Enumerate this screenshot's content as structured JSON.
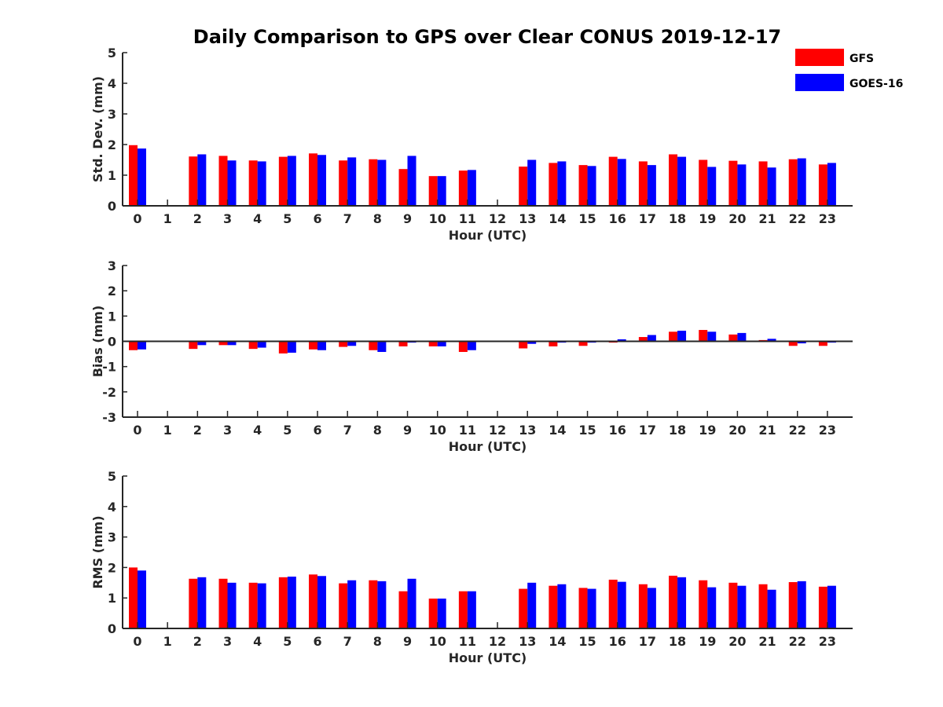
{
  "title": "Daily Comparison to GPS over Clear CONUS 2019-12-17",
  "legend": [
    {
      "name": "GFS",
      "color": "#ff0000"
    },
    {
      "name": "GOES-16",
      "color": "#0000ff"
    }
  ],
  "chart_data": [
    {
      "type": "bar",
      "ylabel": "Std. Dev. (mm)",
      "xlabel": "Hour (UTC)",
      "ylim": [
        0,
        5
      ],
      "yticks": [
        0,
        1,
        2,
        3,
        4,
        5
      ],
      "categories": [
        "0",
        "1",
        "2",
        "3",
        "4",
        "5",
        "6",
        "7",
        "8",
        "9",
        "10",
        "11",
        "12",
        "13",
        "14",
        "15",
        "16",
        "17",
        "18",
        "19",
        "20",
        "21",
        "22",
        "23"
      ],
      "series": [
        {
          "name": "GFS",
          "color": "#ff0000",
          "values": [
            1.98,
            null,
            1.61,
            1.63,
            1.48,
            1.6,
            1.71,
            1.48,
            1.52,
            1.2,
            0.97,
            1.15,
            null,
            1.28,
            1.4,
            1.33,
            1.6,
            1.45,
            1.68,
            1.5,
            1.47,
            1.45,
            1.52,
            1.35
          ]
        },
        {
          "name": "GOES-16",
          "color": "#0000ff",
          "values": [
            1.87,
            null,
            1.68,
            1.48,
            1.45,
            1.63,
            1.66,
            1.58,
            1.5,
            1.63,
            0.97,
            1.17,
            null,
            1.5,
            1.45,
            1.3,
            1.53,
            1.33,
            1.6,
            1.27,
            1.35,
            1.25,
            1.55,
            1.4
          ]
        }
      ]
    },
    {
      "type": "bar",
      "ylabel": "Bias (mm)",
      "xlabel": "Hour (UTC)",
      "ylim": [
        -3,
        3
      ],
      "yticks": [
        -3,
        -2,
        -1,
        0,
        1,
        2,
        3
      ],
      "categories": [
        "0",
        "1",
        "2",
        "3",
        "4",
        "5",
        "6",
        "7",
        "8",
        "9",
        "10",
        "11",
        "12",
        "13",
        "14",
        "15",
        "16",
        "17",
        "18",
        "19",
        "20",
        "21",
        "22",
        "23"
      ],
      "series": [
        {
          "name": "GFS",
          "color": "#ff0000",
          "values": [
            -0.35,
            null,
            -0.3,
            -0.15,
            -0.3,
            -0.48,
            -0.32,
            -0.22,
            -0.35,
            -0.2,
            -0.2,
            -0.42,
            null,
            -0.28,
            -0.2,
            -0.18,
            -0.05,
            0.17,
            0.38,
            0.45,
            0.27,
            0.05,
            -0.18,
            -0.18
          ]
        },
        {
          "name": "GOES-16",
          "color": "#0000ff",
          "values": [
            -0.32,
            null,
            -0.15,
            -0.15,
            -0.25,
            -0.45,
            -0.35,
            -0.18,
            -0.42,
            -0.05,
            -0.2,
            -0.35,
            null,
            -0.1,
            -0.05,
            -0.05,
            0.08,
            0.25,
            0.42,
            0.38,
            0.33,
            0.1,
            -0.08,
            -0.05
          ]
        }
      ]
    },
    {
      "type": "bar",
      "ylabel": "RMS (mm)",
      "xlabel": "Hour (UTC)",
      "ylim": [
        0,
        5
      ],
      "yticks": [
        0,
        1,
        2,
        3,
        4,
        5
      ],
      "categories": [
        "0",
        "1",
        "2",
        "3",
        "4",
        "5",
        "6",
        "7",
        "8",
        "9",
        "10",
        "11",
        "12",
        "13",
        "14",
        "15",
        "16",
        "17",
        "18",
        "19",
        "20",
        "21",
        "22",
        "23"
      ],
      "series": [
        {
          "name": "GFS",
          "color": "#ff0000",
          "values": [
            2.0,
            null,
            1.63,
            1.63,
            1.5,
            1.68,
            1.77,
            1.48,
            1.58,
            1.22,
            0.98,
            1.22,
            null,
            1.3,
            1.4,
            1.33,
            1.6,
            1.45,
            1.73,
            1.58,
            1.5,
            1.45,
            1.52,
            1.37
          ]
        },
        {
          "name": "GOES-16",
          "color": "#0000ff",
          "values": [
            1.9,
            null,
            1.68,
            1.5,
            1.48,
            1.7,
            1.72,
            1.58,
            1.55,
            1.63,
            0.98,
            1.22,
            null,
            1.5,
            1.45,
            1.3,
            1.53,
            1.33,
            1.68,
            1.35,
            1.4,
            1.27,
            1.55,
            1.4
          ]
        }
      ]
    }
  ]
}
